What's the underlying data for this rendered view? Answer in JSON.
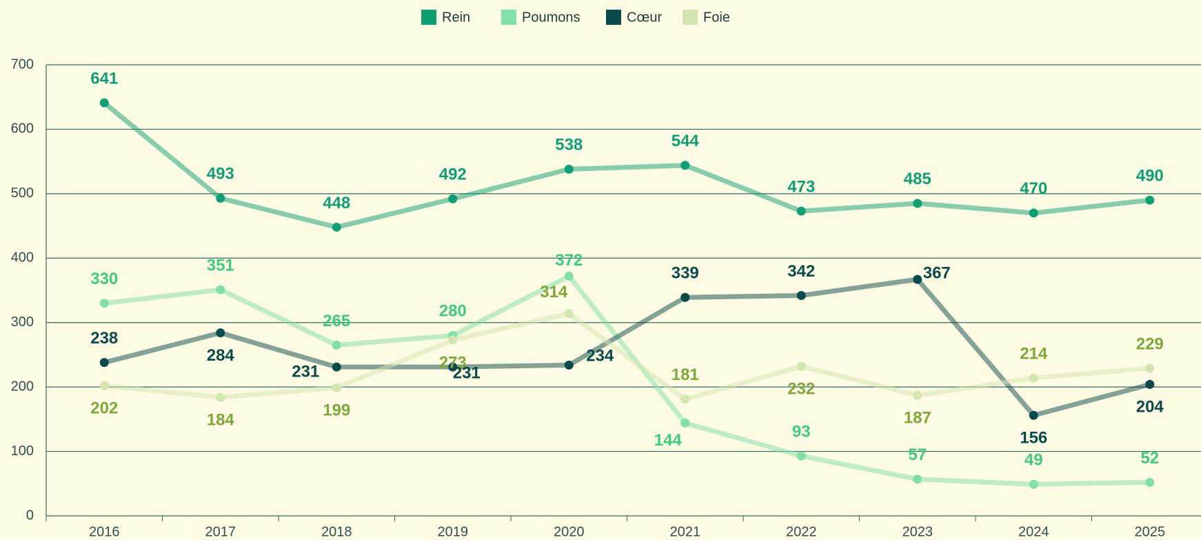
{
  "chart_data": {
    "type": "line",
    "categories": [
      "2016",
      "2017",
      "2018",
      "2019",
      "2020",
      "2021",
      "2022",
      "2023",
      "2024",
      "2025"
    ],
    "series": [
      {
        "name": "Rein",
        "color": "#0e9f73",
        "label_color": "#0e9f73",
        "values": [
          641,
          493,
          448,
          492,
          538,
          544,
          473,
          485,
          470,
          490
        ]
      },
      {
        "name": "Poumons",
        "color": "#7fe0a8",
        "label_color": "#3dcb7c",
        "values": [
          330,
          351,
          265,
          280,
          372,
          144,
          93,
          57,
          49,
          52
        ]
      },
      {
        "name": "Cœur",
        "color": "#0b4a4a",
        "label_color": "#0b4a4a",
        "values": [
          238,
          284,
          231,
          231,
          234,
          339,
          342,
          367,
          156,
          204
        ]
      },
      {
        "name": "Foie",
        "color": "#d4e6b0",
        "label_color": "#7ea83a",
        "values": [
          202,
          184,
          199,
          273,
          314,
          181,
          232,
          187,
          214,
          229
        ]
      }
    ],
    "ylim": [
      0,
      700
    ],
    "yticks": [
      0,
      100,
      200,
      300,
      400,
      500,
      600,
      700
    ],
    "grid": true,
    "legend": "top"
  }
}
